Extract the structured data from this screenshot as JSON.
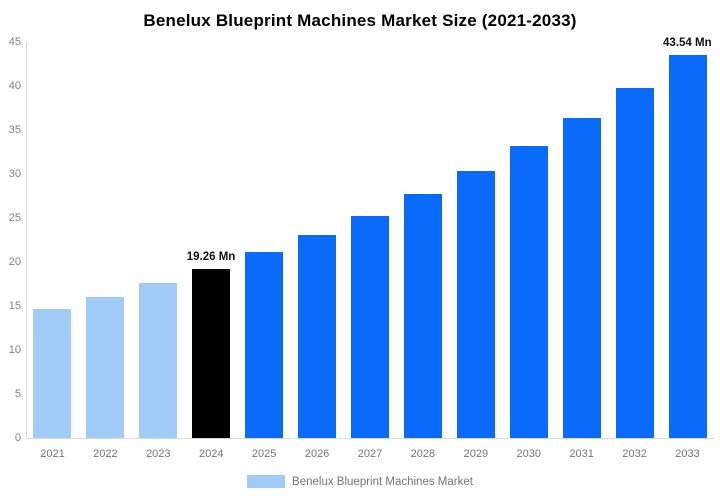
{
  "chart_data": {
    "type": "bar",
    "title": "Benelux Blueprint Machines Market Size (2021-2033)",
    "categories": [
      "2021",
      "2022",
      "2023",
      "2024",
      "2025",
      "2026",
      "2027",
      "2028",
      "2029",
      "2030",
      "2031",
      "2032",
      "2033"
    ],
    "values": [
      14.67,
      16.06,
      17.59,
      19.26,
      21.09,
      23.09,
      25.28,
      27.68,
      30.31,
      33.19,
      36.34,
      39.79,
      43.54
    ],
    "unit": "Mn",
    "xlabel": "",
    "ylabel": "",
    "ylim": [
      0,
      45
    ],
    "y_ticks": [
      0,
      5,
      10,
      15,
      20,
      25,
      30,
      35,
      40,
      45
    ],
    "grid": false,
    "legend_position": "bottom",
    "legend_entries": [
      "Benelux Blueprint Machines Market"
    ],
    "bar_styles": [
      "historical",
      "historical",
      "historical",
      "highlight",
      "forecast",
      "forecast",
      "forecast",
      "forecast",
      "forecast",
      "forecast",
      "forecast",
      "forecast",
      "forecast"
    ],
    "colors": {
      "historical": "#a2ccf8",
      "highlight": "#000000",
      "forecast": "#0a6bfa",
      "axis_line": "#d9d9d9",
      "tick_text": "#808080",
      "category_text": "#757575",
      "annotation_text": "#111111"
    },
    "annotations": [
      {
        "category": "2024",
        "text": "19.26 Mn"
      },
      {
        "category": "2033",
        "text": "43.54 Mn"
      }
    ]
  }
}
